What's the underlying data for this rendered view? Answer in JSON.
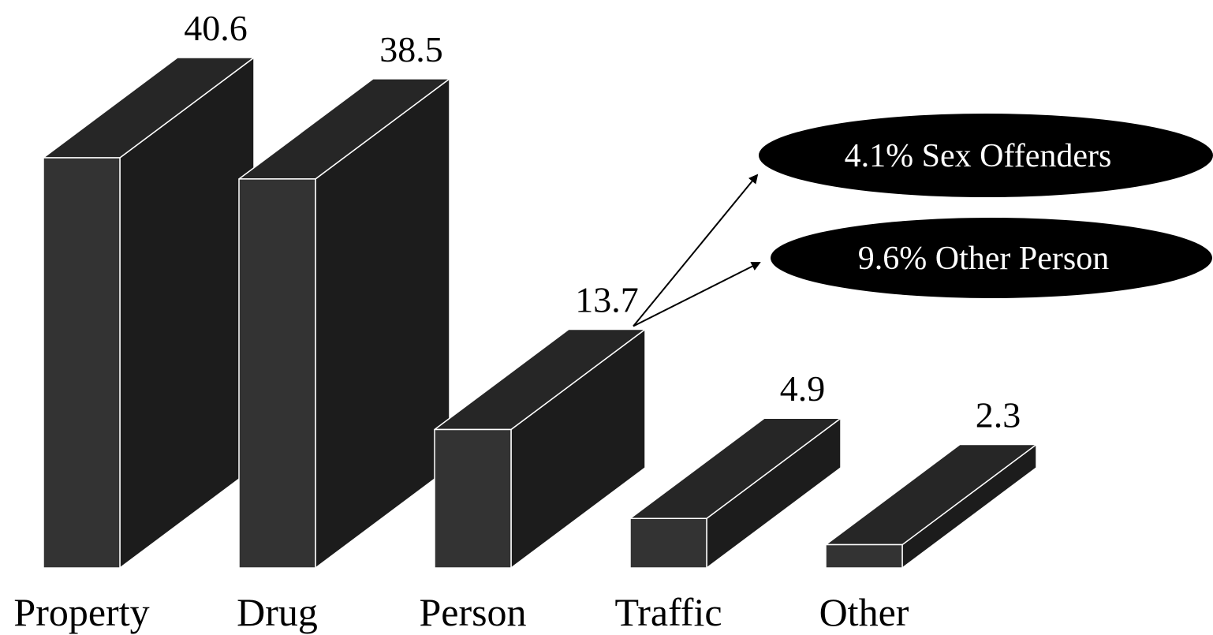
{
  "chart_data": {
    "type": "bar",
    "categories": [
      "Property",
      "Drug",
      "Person",
      "Traffic",
      "Other"
    ],
    "values": [
      40.6,
      38.5,
      13.7,
      4.9,
      2.3
    ],
    "value_labels": [
      "40.6",
      "38.5",
      "13.7",
      "4.9",
      "2.3"
    ],
    "title": "",
    "xlabel": "",
    "ylabel": "",
    "ylim": [
      0,
      40.6
    ],
    "grid": false,
    "style": "3d-box",
    "colors": {
      "front": "#333333",
      "side": "#1c1c1c",
      "top": "#262626",
      "edge": "#ffffff"
    },
    "annotations": [
      {
        "text": "4.1% Sex Offenders",
        "target_category": "Person"
      },
      {
        "text": "9.6% Other Person",
        "target_category": "Person"
      }
    ]
  }
}
